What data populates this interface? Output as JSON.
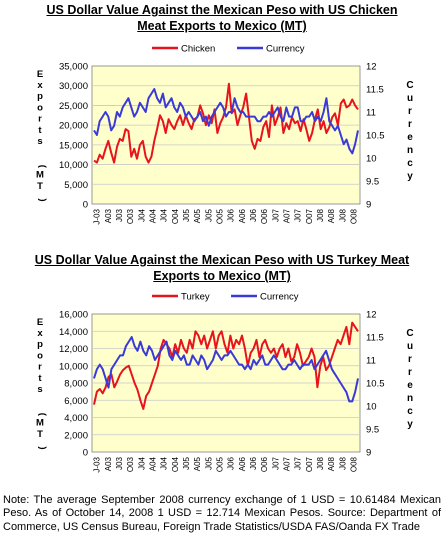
{
  "charts": [
    {
      "title_line1": "US Dollar Value Against the Mexican Peso with US Chicken",
      "title_line2": "Meat Exports to Mexico (MT)"
    },
    {
      "title_line1": "US Dollar Value Against the Mexican Peso with US Turkey Meat",
      "title_line2": "Exports to Mexico (MT)"
    }
  ],
  "colors": {
    "primary_series": "#e8141c",
    "currency_series": "#3a3ad8",
    "plot_bg": "#ffffcc",
    "grid": "#c8c8c8"
  },
  "chart_data": [
    {
      "type": "line",
      "title": "US Dollar Value Against the Mexican Peso with US Chicken Meat Exports to Mexico (MT)",
      "ylabel": "Exports (MT)",
      "y2label": "Currency",
      "ylim": [
        0,
        35000
      ],
      "y2lim": [
        9,
        12
      ],
      "yticks": [
        "0",
        "5,000",
        "10,000",
        "15,000",
        "20,000",
        "25,000",
        "30,000",
        "35,000"
      ],
      "y2ticks": [
        "9",
        "9.5",
        "10",
        "10.5",
        "11",
        "11.5",
        "12"
      ],
      "xticks": [
        "J-03",
        "A03",
        "J03",
        "O03",
        "J04",
        "A04",
        "J04",
        "O04",
        "J05",
        "A05",
        "J05",
        "O05",
        "J06",
        "A06",
        "J06",
        "O06",
        "J07",
        "A07",
        "J07",
        "O07",
        "J08",
        "A08",
        "J08",
        "O08"
      ],
      "legend_position": "top-center",
      "series": [
        {
          "name": "Chicken",
          "axis": "left",
          "values": [
            11000,
            10500,
            12500,
            11500,
            14000,
            16000,
            13000,
            10500,
            14500,
            16500,
            16000,
            19000,
            18500,
            12000,
            14000,
            11500,
            15000,
            16000,
            12000,
            10500,
            12000,
            16000,
            19000,
            22500,
            21000,
            18000,
            21500,
            20000,
            19000,
            21000,
            22500,
            20000,
            22500,
            20500,
            19000,
            21500,
            22000,
            25000,
            23000,
            20000,
            22500,
            20500,
            24000,
            18000,
            20500,
            22000,
            24500,
            30500,
            23000,
            24000,
            20000,
            22500,
            24500,
            28000,
            22000,
            16000,
            14000,
            16500,
            16000,
            19500,
            21000,
            17000,
            25000,
            20000,
            22000,
            24500,
            18000,
            20500,
            19000,
            22000,
            20500,
            21000,
            18500,
            21500,
            19000,
            16000,
            18000,
            21500,
            24000,
            19000,
            21000,
            18000,
            19500,
            22000,
            23000,
            20000,
            25500,
            26500,
            24500,
            25000,
            26500,
            25000,
            24000
          ]
        },
        {
          "name": "Currency",
          "axis": "right",
          "values": [
            10.6,
            10.5,
            10.8,
            10.9,
            11.0,
            10.9,
            10.6,
            10.7,
            11.0,
            10.9,
            11.1,
            11.2,
            11.3,
            11.1,
            10.9,
            11.0,
            11.2,
            11.1,
            11.0,
            11.3,
            11.4,
            11.5,
            11.3,
            11.2,
            11.4,
            11.1,
            11.2,
            11.3,
            11.1,
            11.0,
            11.2,
            11.1,
            10.9,
            11.0,
            10.9,
            10.8,
            10.9,
            11.0,
            10.8,
            10.9,
            10.7,
            10.9,
            11.0,
            11.1,
            11.2,
            11.1,
            10.9,
            11.0,
            11.0,
            11.3,
            11.1,
            11.0,
            11.0,
            10.9,
            10.9,
            10.9,
            10.9,
            10.8,
            10.8,
            10.9,
            10.9,
            11.0,
            10.9,
            11.0,
            11.1,
            10.9,
            10.8,
            11.1,
            10.9,
            10.9,
            11.1,
            11.1,
            10.8,
            10.8,
            10.9,
            10.9,
            11.0,
            10.8,
            10.9,
            10.8,
            11.0,
            11.3,
            10.8,
            10.7,
            10.6,
            10.7,
            10.5,
            10.3,
            10.4,
            10.2,
            10.1,
            10.3,
            10.6
          ]
        }
      ]
    },
    {
      "type": "line",
      "title": "US Dollar Value Against the Mexican Peso with US Turkey Meat Exports to Mexico (MT)",
      "ylabel": "Exports (MT)",
      "y2label": "Currency",
      "ylim": [
        0,
        16000
      ],
      "y2lim": [
        9,
        12
      ],
      "yticks": [
        "0",
        "2,000",
        "4,000",
        "6,000",
        "8,000",
        "10,000",
        "12,000",
        "14,000",
        "16,000"
      ],
      "y2ticks": [
        "9",
        "9.5",
        "10",
        "10.5",
        "11",
        "11.5",
        "12"
      ],
      "xticks": [
        "J-03",
        "A03",
        "J03",
        "O03",
        "J04",
        "A04",
        "J04",
        "O04",
        "J05",
        "A05",
        "J05",
        "O05",
        "J06",
        "A06",
        "J06",
        "O06",
        "J07",
        "A07",
        "J07",
        "O07",
        "J08",
        "A08",
        "J08",
        "O08"
      ],
      "legend_position": "top-center",
      "series": [
        {
          "name": "Turkey",
          "axis": "left",
          "values": [
            5500,
            7000,
            7300,
            6800,
            7500,
            8700,
            9000,
            7500,
            8200,
            9000,
            9500,
            9800,
            10000,
            9000,
            8000,
            7200,
            6000,
            5000,
            6500,
            7000,
            8000,
            9000,
            10000,
            12000,
            13000,
            12500,
            12000,
            11000,
            12500,
            11500,
            13000,
            12000,
            11500,
            13000,
            12000,
            14000,
            13500,
            12500,
            13500,
            12000,
            13000,
            14000,
            12000,
            13500,
            14000,
            12500,
            11500,
            13500,
            12000,
            13000,
            12500,
            13500,
            12000,
            10000,
            11500,
            12000,
            13000,
            11000,
            12500,
            13000,
            12000,
            11500,
            12000,
            11000,
            12000,
            12500,
            11000,
            12000,
            10500,
            11000,
            12500,
            11500,
            10000,
            10500,
            11000,
            12000,
            11000,
            7500,
            10000,
            11000,
            9500,
            10000,
            11000,
            12000,
            13000,
            12500,
            13500,
            14500,
            12500,
            15000,
            14500,
            14000
          ]
        },
        {
          "name": "Currency",
          "axis": "right",
          "values": [
            10.6,
            10.8,
            10.9,
            10.8,
            10.6,
            10.4,
            10.8,
            10.9,
            11.0,
            11.1,
            11.1,
            11.3,
            11.4,
            11.5,
            11.3,
            11.2,
            11.4,
            11.2,
            11.1,
            11.3,
            11.2,
            11.0,
            11.1,
            11.2,
            11.3,
            11.4,
            11.1,
            11.0,
            11.2,
            11.1,
            11.0,
            11.1,
            10.9,
            10.9,
            11.1,
            11.0,
            10.9,
            11.1,
            11.0,
            10.8,
            10.9,
            11.0,
            11.2,
            11.1,
            11.0,
            11.1,
            11.1,
            11.2,
            11.1,
            11.0,
            10.9,
            10.9,
            10.8,
            10.9,
            10.8,
            11.0,
            10.9,
            11.0,
            11.1,
            10.9,
            10.9,
            11.0,
            11.1,
            11.0,
            10.9,
            10.8,
            10.8,
            10.9,
            10.9,
            11.0,
            10.9,
            10.8,
            10.9,
            10.9,
            10.9,
            11.0,
            10.8,
            10.9,
            11.0,
            11.1,
            11.2,
            11.0,
            10.8,
            10.7,
            10.6,
            10.5,
            10.4,
            10.3,
            10.1,
            10.1,
            10.3,
            10.6
          ]
        }
      ]
    }
  ],
  "footnote": "Note: The average September 2008 currency exchange of 1 USD = 10.61484 Mexican Peso. As of October 14, 2008 1 USD = 12.714 Mexican Pesos. Source: Department of Commerce, US Census Bureau, Foreign Trade Statistics/USDA FAS/Oanda FX Trade"
}
